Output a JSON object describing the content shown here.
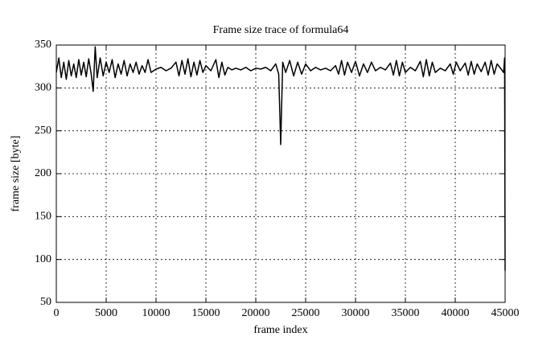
{
  "chart_data": {
    "type": "line",
    "title": "Frame size trace of formula64",
    "x_label": "frame index",
    "y_label": "frame size [byte]",
    "xlim": [
      0,
      45000
    ],
    "ylim": [
      50,
      350
    ],
    "xticks": [
      0,
      5000,
      10000,
      15000,
      20000,
      25000,
      30000,
      35000,
      40000,
      45000
    ],
    "yticks": [
      50,
      100,
      150,
      200,
      250,
      300,
      350
    ],
    "grid": true,
    "series": [
      {
        "color": "#000000",
        "x": [
          0,
          250,
          500,
          750,
          1000,
          1250,
          1500,
          1750,
          2000,
          2250,
          2500,
          2750,
          3000,
          3250,
          3500,
          3700,
          3900,
          4100,
          4400,
          4700,
          5000,
          5300,
          5600,
          5900,
          6200,
          6500,
          6800,
          7100,
          7400,
          7700,
          8000,
          8300,
          8600,
          8900,
          9200,
          9500,
          10000,
          10500,
          11000,
          11500,
          12000,
          12300,
          12600,
          12900,
          13200,
          13500,
          13800,
          14100,
          14400,
          14700,
          15000,
          15500,
          16000,
          16300,
          16600,
          16900,
          17200,
          17600,
          18000,
          18500,
          19000,
          19500,
          20000,
          20500,
          21000,
          21500,
          22000,
          22300,
          22500,
          22700,
          23000,
          23400,
          23800,
          24200,
          24600,
          25000,
          25500,
          26000,
          26500,
          27000,
          27500,
          28000,
          28300,
          28600,
          28900,
          29200,
          29600,
          30000,
          30400,
          30800,
          31200,
          31600,
          32000,
          32500,
          33000,
          33500,
          33800,
          34100,
          34400,
          34700,
          35000,
          35500,
          36000,
          36500,
          36800,
          37100,
          37400,
          37700,
          38000,
          38500,
          39000,
          39500,
          39800,
          40100,
          40500,
          41000,
          41300,
          41600,
          41900,
          42200,
          42600,
          43000,
          43300,
          43600,
          43900,
          44200,
          44600,
          44850,
          44950,
          45000
        ],
        "values": [
          318,
          335,
          312,
          330,
          310,
          332,
          314,
          328,
          312,
          333,
          315,
          330,
          313,
          334,
          316,
          296,
          348,
          312,
          335,
          314,
          330,
          318,
          333,
          312,
          328,
          316,
          332,
          314,
          328,
          318,
          330,
          316,
          326,
          318,
          333,
          318,
          322,
          324,
          320,
          323,
          330,
          314,
          332,
          316,
          334,
          313,
          330,
          315,
          332,
          318,
          326,
          320,
          333,
          312,
          330,
          315,
          324,
          321,
          323,
          321,
          324,
          320,
          323,
          322,
          324,
          320,
          328,
          316,
          234,
          330,
          318,
          332,
          314,
          330,
          316,
          328,
          320,
          324,
          321,
          323,
          320,
          326,
          316,
          332,
          315,
          330,
          318,
          331,
          314,
          328,
          318,
          330,
          320,
          324,
          321,
          329,
          315,
          332,
          314,
          330,
          318,
          324,
          320,
          331,
          313,
          333,
          314,
          330,
          318,
          323,
          320,
          328,
          316,
          330,
          320,
          329,
          315,
          331,
          316,
          328,
          319,
          330,
          315,
          332,
          316,
          328,
          322,
          318,
          335,
          87
        ]
      }
    ]
  }
}
